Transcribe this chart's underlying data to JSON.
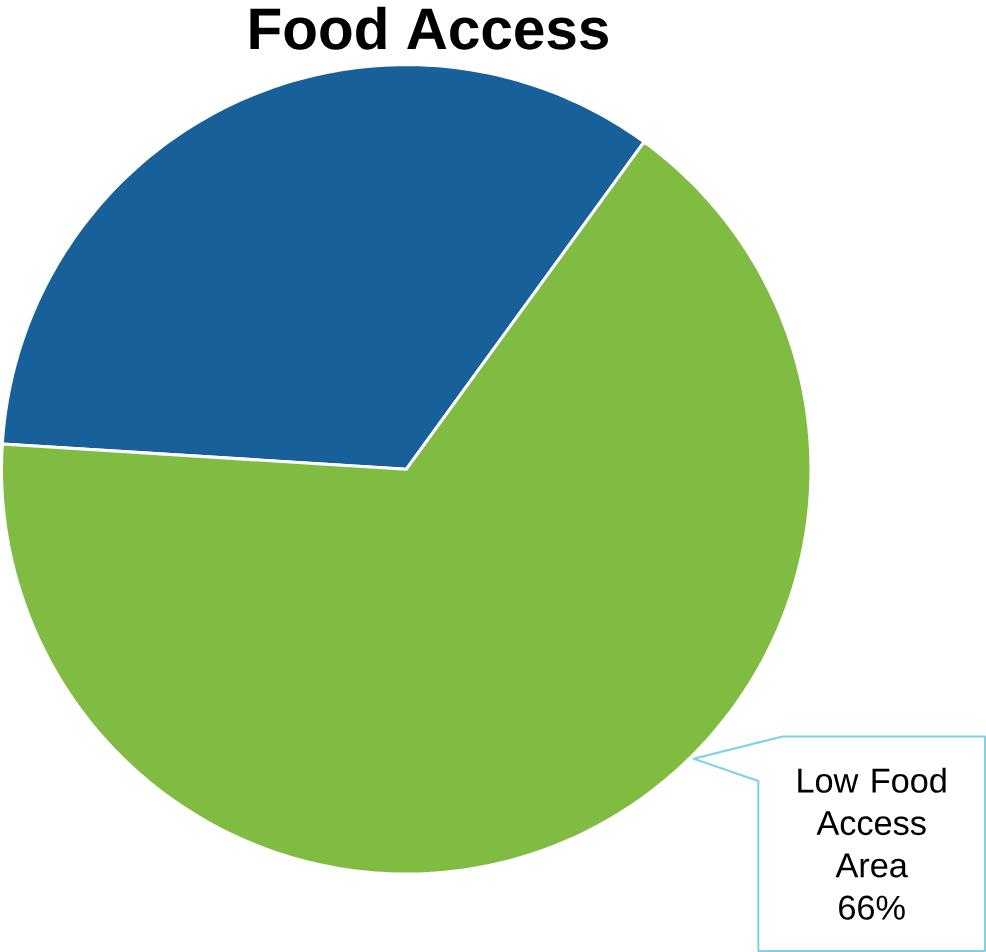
{
  "chart_data": {
    "type": "pie",
    "title": "Food Access",
    "categories": [
      null,
      "Low Food Access Area"
    ],
    "values": [
      34,
      66
    ],
    "colors": [
      "#17609a",
      "#80bc41"
    ],
    "value_labels": [
      null,
      "66%"
    ]
  }
}
